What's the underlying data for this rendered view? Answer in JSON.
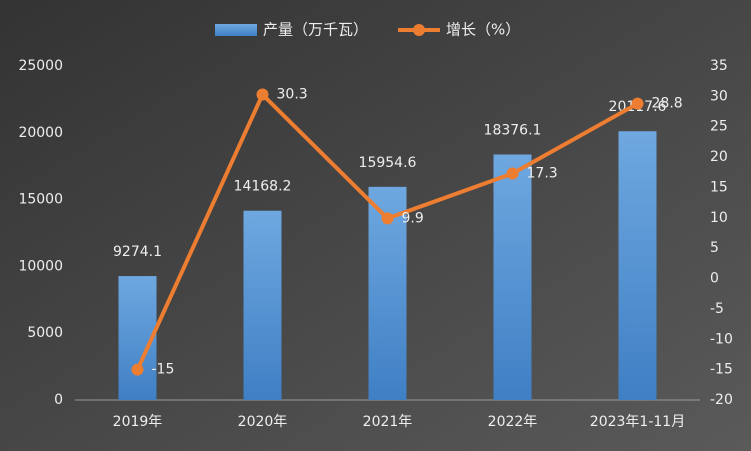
{
  "chart_data": {
    "type": "bar",
    "categories": [
      "2019年",
      "2020年",
      "2021年",
      "2022年",
      "2023年1-11月"
    ],
    "series": [
      {
        "name": "产量（万千瓦）",
        "type": "bar",
        "color": "#5b9bd5",
        "values": [
          9274.1,
          14168.2,
          15954.6,
          18376.1,
          20117.6
        ]
      },
      {
        "name": "增长（%）",
        "type": "line",
        "axis": "y2",
        "color": "#ed7d31",
        "values": [
          -15,
          30.3,
          9.9,
          17.3,
          28.8
        ]
      }
    ],
    "ylim": [
      0,
      25000
    ],
    "yticks": [
      0,
      5000,
      10000,
      15000,
      20000,
      25000
    ],
    "y2lim": [
      -20,
      35
    ],
    "y2ticks": [
      -20,
      -15,
      -10,
      -5,
      0,
      5,
      10,
      15,
      20,
      25,
      30,
      35
    ],
    "grid": false,
    "legend": "top"
  }
}
